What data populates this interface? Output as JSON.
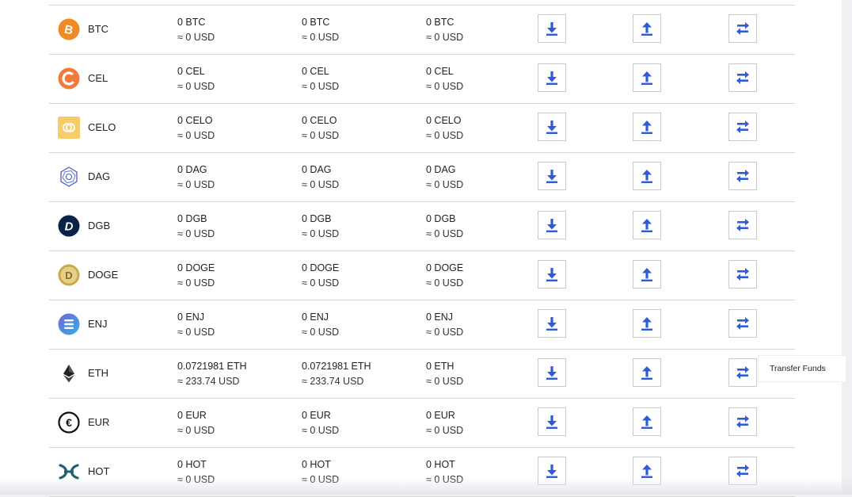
{
  "assets": [
    {
      "symbol": "BTC",
      "icon": "btc-icon",
      "bal1": "0 BTC",
      "usd1": "≈ 0 USD",
      "bal2": "0 BTC",
      "usd2": "≈ 0 USD",
      "bal3": "0 BTC",
      "usd3": "≈ 0 USD"
    },
    {
      "symbol": "CEL",
      "icon": "cel-icon",
      "bal1": "0 CEL",
      "usd1": "≈ 0 USD",
      "bal2": "0 CEL",
      "usd2": "≈ 0 USD",
      "bal3": "0 CEL",
      "usd3": "≈ 0 USD"
    },
    {
      "symbol": "CELO",
      "icon": "celo-icon",
      "bal1": "0 CELO",
      "usd1": "≈ 0 USD",
      "bal2": "0 CELO",
      "usd2": "≈ 0 USD",
      "bal3": "0 CELO",
      "usd3": "≈ 0 USD"
    },
    {
      "symbol": "DAG",
      "icon": "dag-icon",
      "bal1": "0 DAG",
      "usd1": "≈ 0 USD",
      "bal2": "0 DAG",
      "usd2": "≈ 0 USD",
      "bal3": "0 DAG",
      "usd3": "≈ 0 USD"
    },
    {
      "symbol": "DGB",
      "icon": "dgb-icon",
      "bal1": "0 DGB",
      "usd1": "≈ 0 USD",
      "bal2": "0 DGB",
      "usd2": "≈ 0 USD",
      "bal3": "0 DGB",
      "usd3": "≈ 0 USD"
    },
    {
      "symbol": "DOGE",
      "icon": "doge-icon",
      "bal1": "0 DOGE",
      "usd1": "≈ 0 USD",
      "bal2": "0 DOGE",
      "usd2": "≈ 0 USD",
      "bal3": "0 DOGE",
      "usd3": "≈ 0 USD"
    },
    {
      "symbol": "ENJ",
      "icon": "enj-icon",
      "bal1": "0 ENJ",
      "usd1": "≈ 0 USD",
      "bal2": "0 ENJ",
      "usd2": "≈ 0 USD",
      "bal3": "0 ENJ",
      "usd3": "≈ 0 USD"
    },
    {
      "symbol": "ETH",
      "icon": "eth-icon",
      "bal1": "0.0721981 ETH",
      "usd1": "≈ 233.74 USD",
      "bal2": "0.0721981 ETH",
      "usd2": "≈ 233.74 USD",
      "bal3": "0 ETH",
      "usd3": "≈ 0 USD"
    },
    {
      "symbol": "EUR",
      "icon": "eur-icon",
      "bal1": "0 EUR",
      "usd1": "≈ 0 USD",
      "bal2": "0 EUR",
      "usd2": "≈ 0 USD",
      "bal3": "0 EUR",
      "usd3": "≈ 0 USD"
    },
    {
      "symbol": "HOT",
      "icon": "hot-icon",
      "bal1": "0 HOT",
      "usd1": "≈ 0 USD",
      "bal2": "0 HOT",
      "usd2": "≈ 0 USD",
      "bal3": "0 HOT",
      "usd3": "≈ 0 USD"
    }
  ],
  "actions": {
    "deposit_icon": "download-arrow-icon",
    "withdraw_icon": "upload-arrow-icon",
    "transfer_icon": "transfer-arrows-icon"
  },
  "tooltip": {
    "text": "Transfer Funds"
  },
  "colors": {
    "action_blue": "#2f5bd9"
  }
}
